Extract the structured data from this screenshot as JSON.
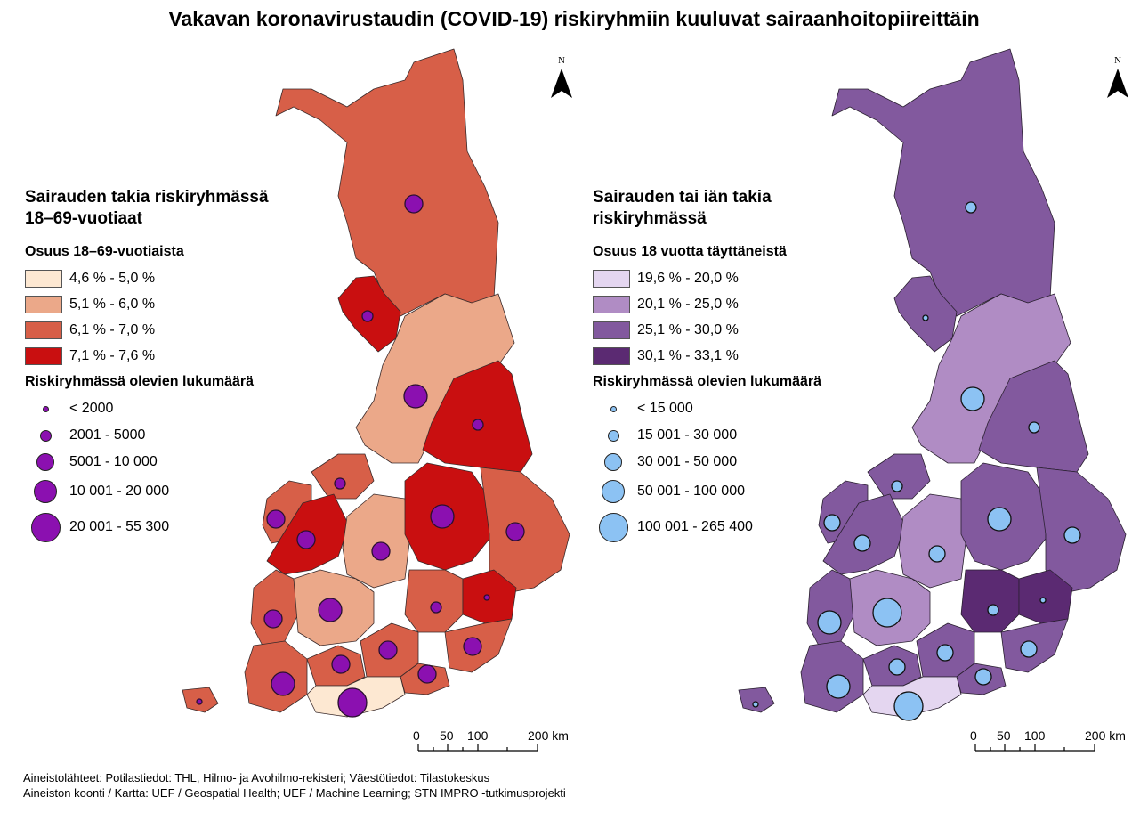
{
  "title": "Vakavan koronavirustaudin (COVID-19) riskiryhmiin kuuluvat sairaanhoitopiireittäin",
  "colors": {
    "left_classes": [
      "#fde8d2",
      "#eba889",
      "#d75f48",
      "#c90f10"
    ],
    "right_classes": [
      "#e4d6f0",
      "#b08cc4",
      "#82599e",
      "#5b2a72"
    ],
    "left_symbol": "#8b10b0",
    "right_symbol": "#8cc2f3"
  },
  "maps": [
    {
      "id": "left",
      "legend": {
        "heading_line1": "Sairauden takia riskiryhmässä",
        "heading_line2": "18–69-vuotiaat",
        "share_title": "Osuus 18–69-vuotiaista",
        "classes": [
          "4,6 % - 5,0 %",
          "5,1 % - 6,0 %",
          "6,1 % - 7,0 %",
          "7,1 % - 7,6 %"
        ],
        "count_title": "Riskiryhmässä olevien lukumäärä",
        "counts": [
          "< 2000",
          "2001 - 5000",
          "5001 - 10 000",
          "10 001 - 20 000",
          "20 001 - 55 300"
        ]
      },
      "north_label": "N",
      "scale": {
        "ticks": [
          "0",
          "50",
          "100",
          "200 km"
        ]
      }
    },
    {
      "id": "right",
      "legend": {
        "heading_line1": "Sairauden tai iän takia",
        "heading_line2": "riskiryhmässä",
        "share_title": "Osuus 18 vuotta täyttäneistä",
        "classes": [
          "19,6 % - 20,0 %",
          "20,1 % - 25,0 %",
          "25,1 % - 30,0 %",
          "30,1 % - 33,1 %"
        ],
        "count_title": "Riskiryhmässä olevien lukumäärä",
        "counts": [
          "< 15 000",
          "15 001 - 30 000",
          "30 001 - 50 000",
          "50 001 - 100 000",
          "100 001 - 265 400"
        ]
      },
      "north_label": "N",
      "scale": {
        "ticks": [
          "0",
          "50",
          "100",
          "200 km"
        ]
      }
    }
  ],
  "footnotes": {
    "line1": "Aineistolähteet: Potilastiedot: THL, Hilmo- ja Avohilmo-rekisteri; Väestötiedot: Tilastokeskus",
    "line2": "Aineiston koonti / Kartta: UEF / Geospatial Health; UEF / Machine Learning; STN IMPRO -tutkimusprojekti"
  }
}
